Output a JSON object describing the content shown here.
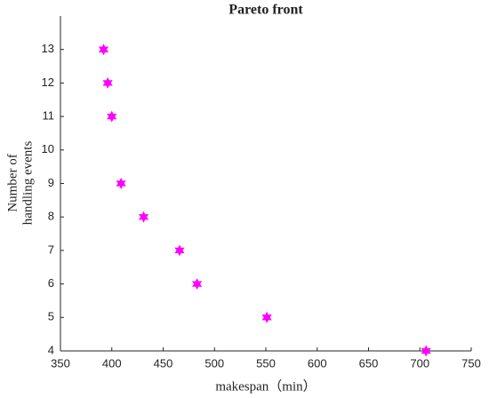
{
  "chart_data": {
    "type": "scatter",
    "title": "Pareto front",
    "x_label": "makespan（min）",
    "y_label": [
      "Number of",
      "handling events"
    ],
    "series": [
      {
        "color": "#ff00ff",
        "x": [
          392,
          396,
          400,
          409,
          431,
          466,
          483,
          551,
          706
        ],
        "values": [
          13,
          12,
          11,
          9,
          8,
          7,
          6,
          5,
          4
        ]
      }
    ],
    "xlim": [
      350,
      750
    ],
    "xticks": [
      350,
      400,
      450,
      500,
      550,
      600,
      650,
      700,
      750
    ],
    "ylim": [
      4,
      14
    ],
    "yticks": [
      4,
      5,
      6,
      7,
      8,
      9,
      10,
      11,
      12,
      13
    ],
    "grid": false
  }
}
